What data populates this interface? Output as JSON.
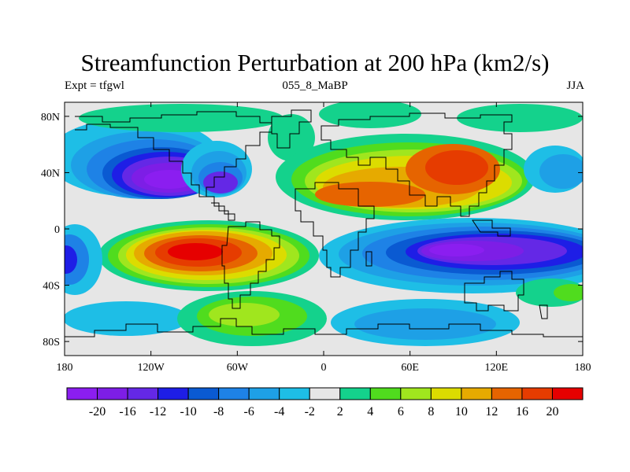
{
  "title": "Streamfunction Perturbation at 200 hPa (km2/s)",
  "subtitle_left": "Expt = tfgwl",
  "subtitle_center": "055_8_MaBP",
  "subtitle_right": "JJA",
  "map_data": {
    "type": "contour-map",
    "projection": "cylindrical-equidistant",
    "lon_range": [
      -180,
      180
    ],
    "lat_range": [
      -90,
      90
    ],
    "x_ticks": [
      {
        "lon": -180,
        "label": "180"
      },
      {
        "lon": -120,
        "label": "120W"
      },
      {
        "lon": -60,
        "label": "60W"
      },
      {
        "lon": 0,
        "label": "0"
      },
      {
        "lon": 60,
        "label": "60E"
      },
      {
        "lon": 120,
        "label": "120E"
      },
      {
        "lon": 180,
        "label": "180"
      }
    ],
    "y_ticks": [
      {
        "lat": 80,
        "label": "80N"
      },
      {
        "lat": 40,
        "label": "40N"
      },
      {
        "lat": 0,
        "label": "0"
      },
      {
        "lat": -40,
        "label": "40S"
      },
      {
        "lat": -80,
        "label": "80S"
      }
    ],
    "features": [
      {
        "name": "positive-center-south-atlantic-pacific",
        "lon": -75,
        "lat": -18,
        "value": 20
      },
      {
        "name": "positive-center-central-asia",
        "lon": 95,
        "lat": 38,
        "value": 16
      },
      {
        "name": "positive-center-north-africa",
        "lon": 25,
        "lat": 25,
        "value": 14
      },
      {
        "name": "negative-center-north-pacific",
        "lon": -115,
        "lat": 35,
        "value": -20
      },
      {
        "name": "negative-center-indian-ocean",
        "lon": 100,
        "lat": -22,
        "value": -20
      },
      {
        "name": "negative-center-west-pacific",
        "lon": -175,
        "lat": -22,
        "value": -10
      }
    ]
  },
  "colorbar": {
    "colors": [
      "#8b1ef0",
      "#7d1ee6",
      "#6428e6",
      "#1e1ee6",
      "#0a5ad2",
      "#1e82e6",
      "#1ea0e6",
      "#1ebee6",
      "#e6e6e6",
      "#14d28c",
      "#50dc1e",
      "#a0e61e",
      "#dcdc00",
      "#e6aa00",
      "#e66400",
      "#e63c00",
      "#e60000"
    ],
    "labels": [
      "-20",
      "-16",
      "-12",
      "-10",
      "-8",
      "-6",
      "-4",
      "-2",
      "2",
      "4",
      "6",
      "8",
      "10",
      "12",
      "16",
      "20"
    ]
  }
}
